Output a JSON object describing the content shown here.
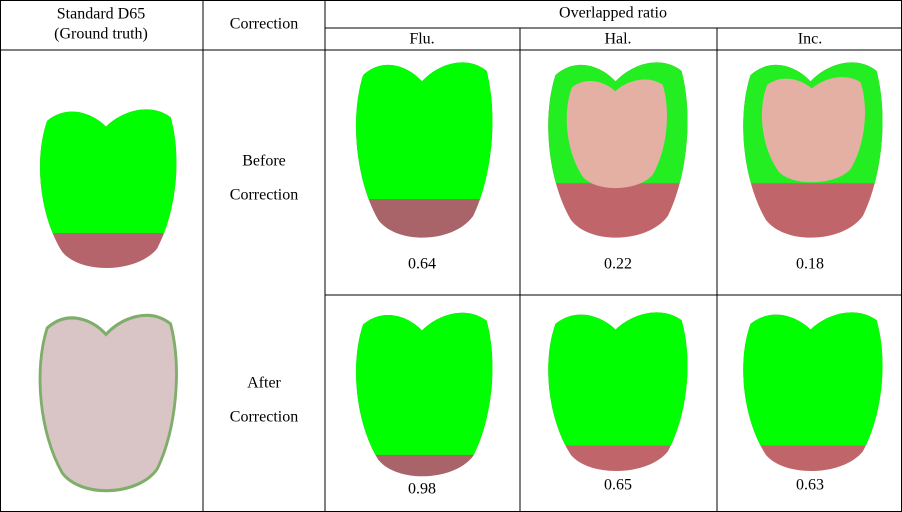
{
  "header": {
    "ground_truth": "Standard D65",
    "ground_truth_sub": "(Ground truth)",
    "correction": "Correction",
    "overlapped_ratio": "Overlapped ratio",
    "illuminants": [
      "Flu.",
      "Hal.",
      "Inc."
    ]
  },
  "rows": [
    {
      "label": [
        "Before",
        "Correction"
      ],
      "ratios": [
        "0.64",
        "0.22",
        "0.18"
      ]
    },
    {
      "label": [
        "After",
        "Correction"
      ],
      "ratios": [
        "0.98",
        "0.65",
        "0.63"
      ]
    }
  ]
}
